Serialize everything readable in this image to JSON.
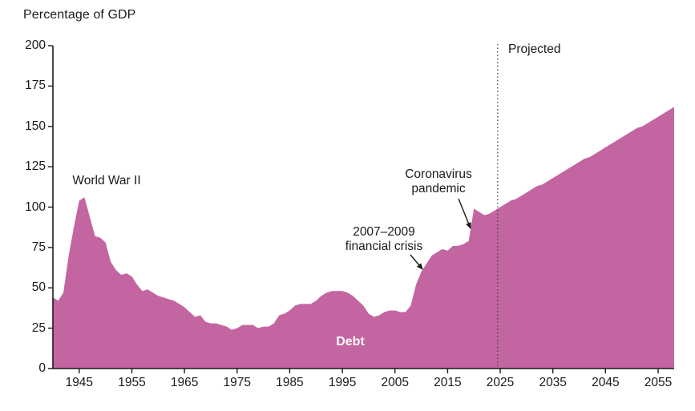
{
  "colors": {
    "area": "#c365a1",
    "axis": "#1a1a1a",
    "text": "#1a1a1a",
    "divider": "#3a3a3a",
    "series_label": "#ffffff",
    "background": "#ffffff"
  },
  "chart_data": {
    "type": "area",
    "title": "",
    "ylabel": "Percentage of GDP",
    "xlabel": "",
    "x_start": 1940,
    "x_end": 2055,
    "x_ticks": [
      1945,
      1955,
      1965,
      1975,
      1985,
      1995,
      2005,
      2015,
      2025,
      2035,
      2045,
      2055
    ],
    "ylim": [
      0,
      200
    ],
    "y_ticks": [
      0,
      25,
      50,
      75,
      100,
      125,
      150,
      175,
      200
    ],
    "grid": false,
    "legend": "none",
    "divider_year": 2024.5,
    "divider_label": "Projected",
    "series": [
      {
        "name": "Debt",
        "values": [
          44,
          42,
          47,
          70,
          88,
          104,
          106,
          94,
          82,
          81,
          78,
          66,
          61,
          58,
          59,
          57,
          52,
          48,
          49,
          47,
          45,
          44,
          43,
          42,
          40,
          38,
          35,
          32,
          33,
          29,
          28,
          28,
          27,
          26,
          24,
          25,
          27,
          27,
          27,
          25,
          26,
          26,
          28,
          33,
          34,
          36,
          39,
          40,
          40,
          40,
          42,
          45,
          47,
          48,
          48,
          48,
          47,
          45,
          42,
          39,
          34,
          32,
          33,
          35,
          36,
          36,
          35,
          35,
          39,
          52,
          60,
          65,
          70,
          72,
          74,
          73,
          76,
          76,
          77,
          79,
          99,
          97,
          95,
          96,
          98,
          100,
          102,
          104,
          105,
          107,
          109,
          111,
          113,
          114,
          116,
          118,
          120,
          122,
          124,
          126,
          128,
          130,
          131,
          133,
          135,
          137,
          139,
          141,
          143,
          145,
          147,
          149,
          150,
          152,
          154,
          156
        ]
      }
    ],
    "annotations": [
      {
        "text": "World War II",
        "target_x": 1946,
        "target_y": 106,
        "arrow": false
      },
      {
        "text": "2007–2009\nfinancial crisis",
        "target_x": 2009,
        "target_y": 52,
        "arrow": true
      },
      {
        "text": "Coronavirus\npandemic",
        "target_x": 2020,
        "target_y": 99,
        "arrow": true
      }
    ]
  }
}
